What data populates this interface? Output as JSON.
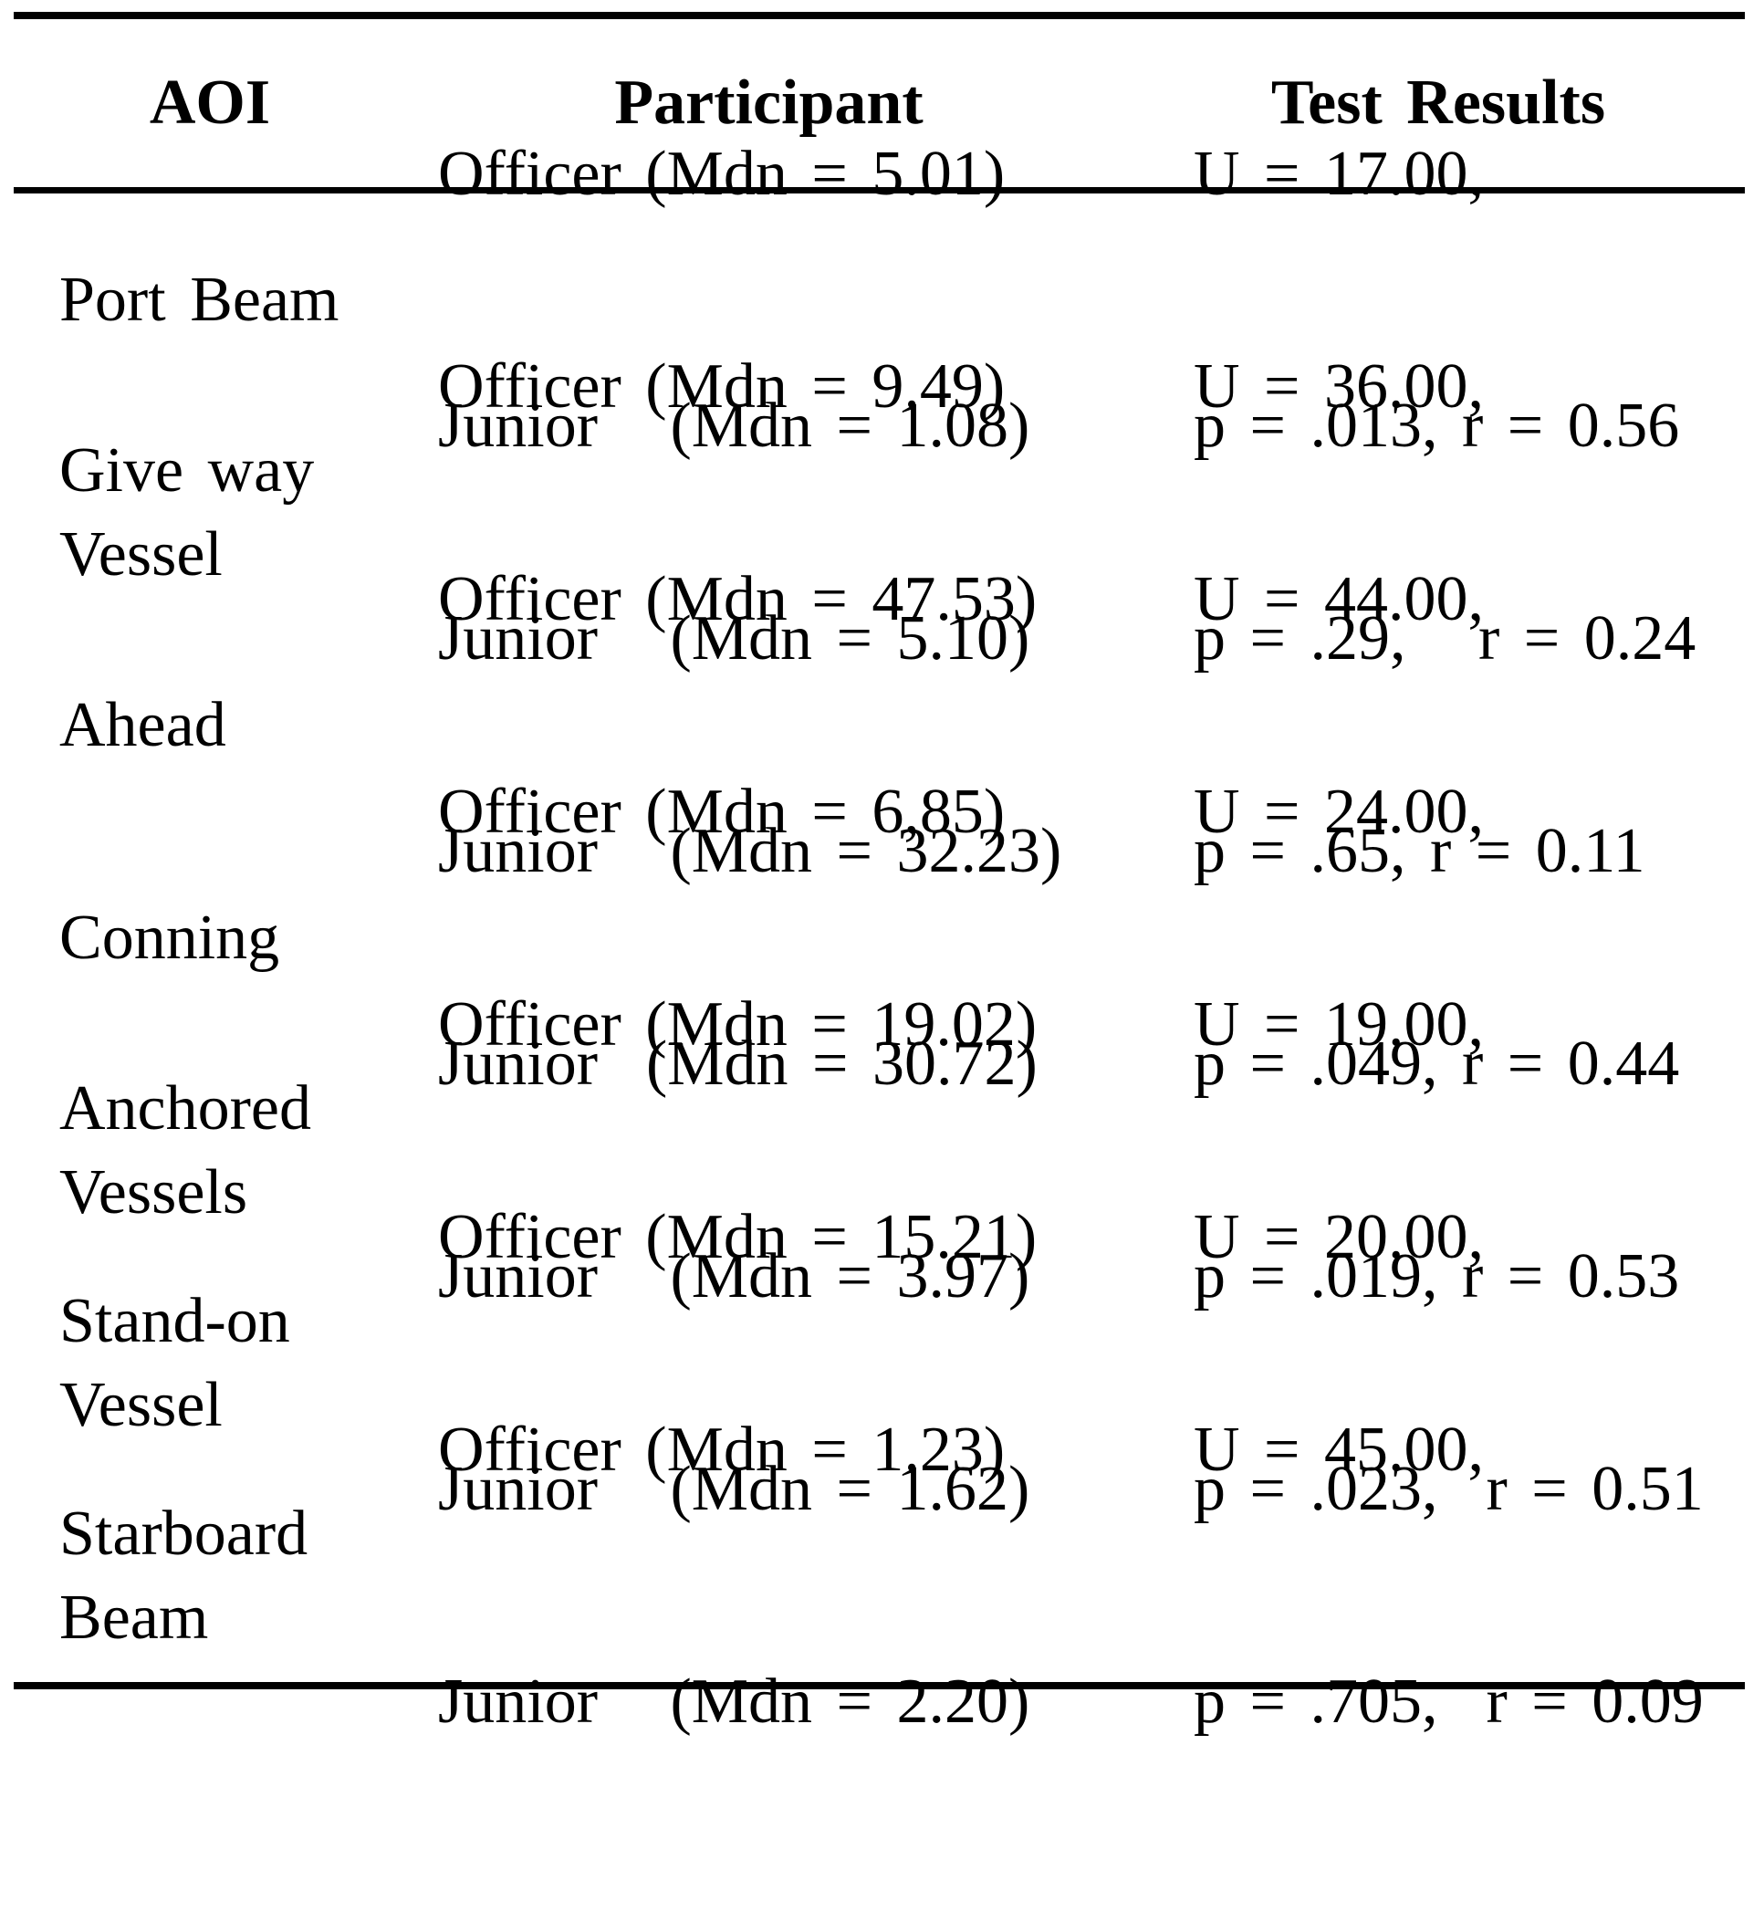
{
  "colors": {
    "text": "#000000",
    "background": "#ffffff",
    "rule": "#000000"
  },
  "table": {
    "headers": {
      "aoi": "AOI",
      "participant": "Participant",
      "test": "Test Results"
    },
    "rows": [
      {
        "aoi": "Port Beam",
        "participant_officer": "Officer (Mdn = 5.01)",
        "participant_junior": "Junior   (Mdn = 1.08)",
        "test_u": "U = 17.00,",
        "test_p_r": "p = .013, r = 0.56"
      },
      {
        "aoi": "Give way\nVessel",
        "participant_officer": "Officer (Mdn = 9.49)",
        "participant_junior": "Junior   (Mdn = 5.10)",
        "test_u": "U = 36.00,",
        "test_p_r": "p = .29,   r = 0.24"
      },
      {
        "aoi": "Ahead",
        "participant_officer": "Officer (Mdn = 47.53)",
        "participant_junior": "Junior   (Mdn = 32.23)",
        "test_u": "U = 44.00,",
        "test_p_r": "p = .65, r = 0.11"
      },
      {
        "aoi": "Conning",
        "participant_officer": "Officer (Mdn = 6,85)",
        "participant_junior": "Junior  (Mdn = 30.72)",
        "test_u": "U = 24.00,",
        "test_p_r": "p = .049, r = 0.44"
      },
      {
        "aoi": "Anchored\nVessels",
        "participant_officer": "Officer (Mdn = 19.02)",
        "participant_junior": "Junior   (Mdn = 3.97)",
        "test_u": "U = 19.00,",
        "test_p_r": "p = .019, r = 0.53"
      },
      {
        "aoi": "Stand-on\nVessel",
        "participant_officer": "Officer (Mdn = 15.21)",
        "participant_junior": "Junior   (Mdn = 1.62)",
        "test_u": "U = 20.00,",
        "test_p_r": "p = .023,  r = 0.51"
      },
      {
        "aoi": "Starboard\nBeam",
        "participant_officer": "Officer (Mdn = 1.23)",
        "participant_junior": "Junior   (Mdn = 2.20)",
        "test_u": "U = 45.00,",
        "test_p_r": "p = .705,  r = 0.09"
      }
    ]
  }
}
